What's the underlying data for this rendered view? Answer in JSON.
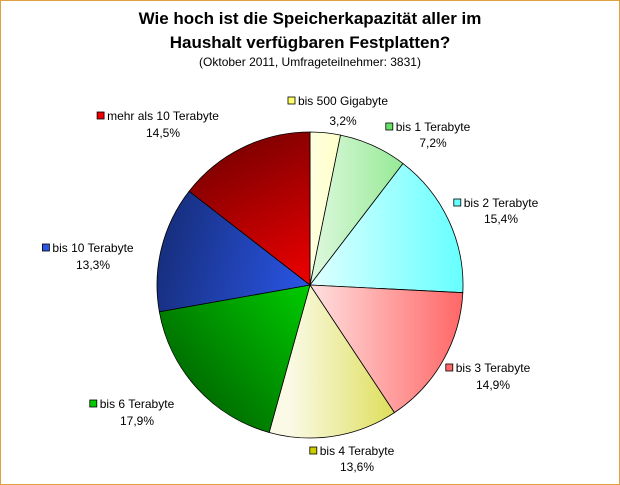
{
  "chart_data": {
    "type": "pie",
    "title_line1": "Wie hoch ist die Speicherkapazität aller im",
    "title_line2": "Haushalt verfügbaren Festplatten?",
    "subtitle": "(Oktober 2011, Umfrageteilnehmer: 3831)",
    "slices": [
      {
        "label": "bis 500 Gigabyte",
        "value": 3.2,
        "value_label": "3,2%",
        "color": "#ffff66"
      },
      {
        "label": "bis 1 Terabyte",
        "value": 7.2,
        "value_label": "7,2%",
        "color": "#66e066"
      },
      {
        "label": "bis 2 Terabyte",
        "value": 15.4,
        "value_label": "15,4%",
        "color": "#66ffff"
      },
      {
        "label": "bis 3 Terabyte",
        "value": 14.9,
        "value_label": "14,9%",
        "color": "#ff6666"
      },
      {
        "label": "bis 4 Terabyte",
        "value": 13.6,
        "value_label": "13,6%",
        "color": "#cccc00"
      },
      {
        "label": "bis 6 Terabyte",
        "value": 17.9,
        "value_label": "17,9%",
        "color": "#00cc00"
      },
      {
        "label": "bis 10 Terabyte",
        "value": 13.3,
        "value_label": "13,3%",
        "color": "#2a55e6"
      },
      {
        "label": "mehr als 10 Terabyte",
        "value": 14.5,
        "value_label": "14,5%",
        "color": "#ee0000"
      }
    ]
  }
}
